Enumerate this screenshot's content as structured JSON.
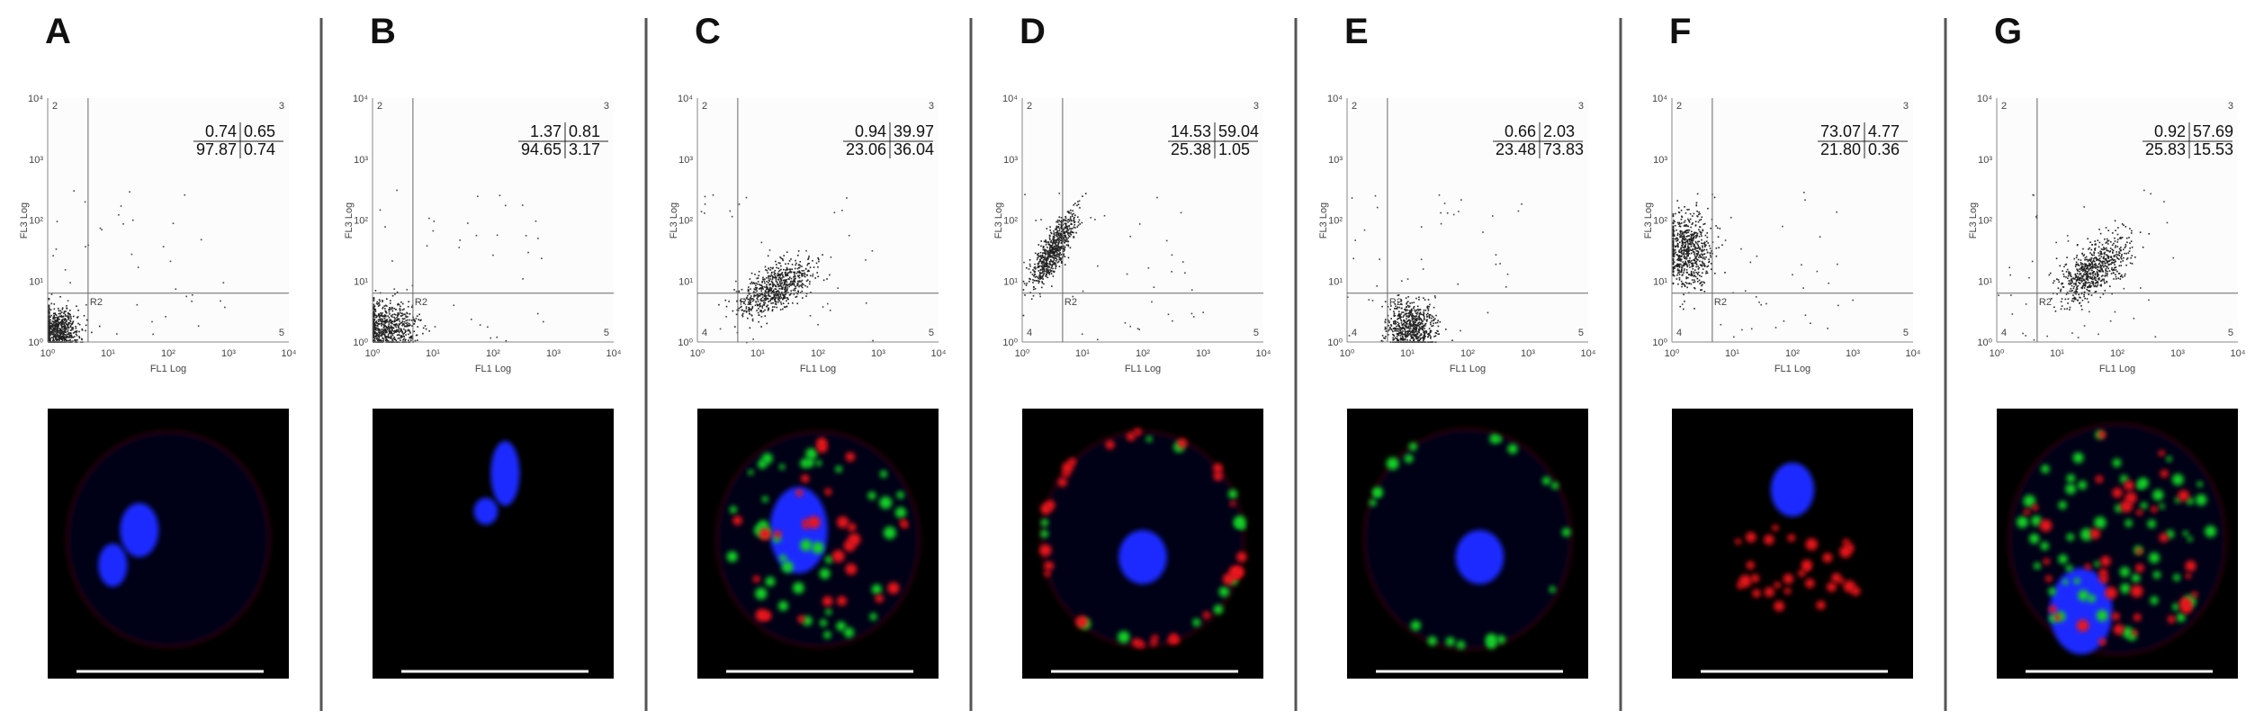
{
  "panels": [
    {
      "label": "A",
      "quadrants": [
        [
          "0.74",
          "0.65"
        ],
        [
          "97.87",
          "0.74"
        ]
      ]
    },
    {
      "label": "B",
      "quadrants": [
        [
          "1.37",
          "0.81"
        ],
        [
          "94.65",
          "3.17"
        ]
      ]
    },
    {
      "label": "C",
      "quadrants": [
        [
          "0.94",
          "39.97"
        ],
        [
          "23.06",
          "36.04"
        ]
      ]
    },
    {
      "label": "D",
      "quadrants": [
        [
          "14.53",
          "59.04"
        ],
        [
          "25.38",
          "1.05"
        ]
      ]
    },
    {
      "label": "E",
      "quadrants": [
        [
          "0.66",
          "2.03"
        ],
        [
          "23.48",
          "73.83"
        ]
      ]
    },
    {
      "label": "F",
      "quadrants": [
        [
          "73.07",
          "4.77"
        ],
        [
          "21.80",
          "0.36"
        ]
      ]
    },
    {
      "label": "G",
      "quadrants": [
        [
          "0.92",
          "57.69"
        ],
        [
          "25.83",
          "15.53"
        ]
      ]
    }
  ],
  "axes": {
    "x_label": "FL1 Log",
    "y_label": "FL3 Log",
    "ticks": [
      "10⁰",
      "10¹",
      "10²",
      "10³",
      "10⁴"
    ],
    "gate": "R2",
    "regions": [
      "2",
      "3",
      "4",
      "5"
    ]
  }
}
